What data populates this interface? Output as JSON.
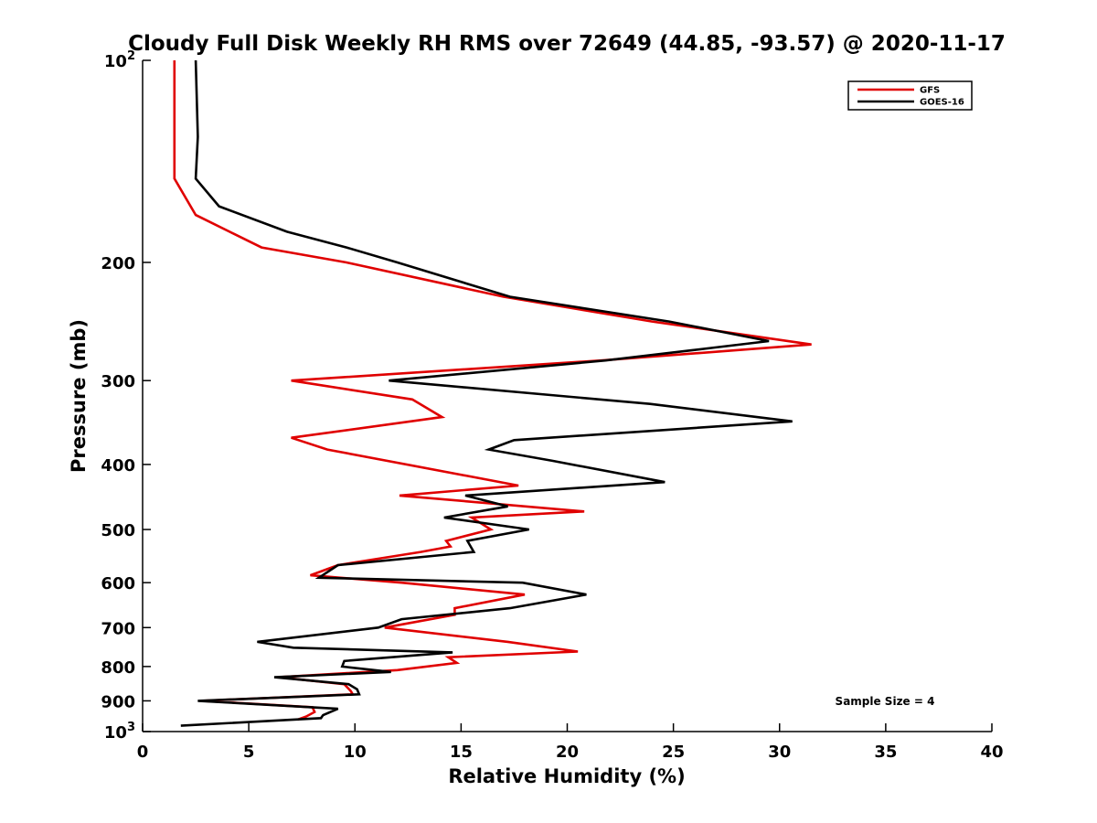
{
  "chart_data": {
    "type": "line",
    "title": "Cloudy Full Disk Weekly RH RMS over 72649 (44.85, -93.57) @ 2020-11-17",
    "xlabel": "Relative Humidity (%)",
    "ylabel": "Pressure (mb)",
    "xlim": [
      0,
      40
    ],
    "ylim": [
      100,
      1000
    ],
    "yscale": "log",
    "yreversed": true,
    "grid": false,
    "legend_position": "top-right",
    "x_ticks": [
      "0",
      "5",
      "10",
      "15",
      "20",
      "25",
      "30",
      "35",
      "40"
    ],
    "y_ticks": [
      {
        "value": 200,
        "label": "200"
      },
      {
        "value": 300,
        "label": "300"
      },
      {
        "value": 400,
        "label": "400"
      },
      {
        "value": 500,
        "label": "500"
      },
      {
        "value": 600,
        "label": "600"
      },
      {
        "value": 700,
        "label": "700"
      },
      {
        "value": 800,
        "label": "800"
      },
      {
        "value": 900,
        "label": "900"
      }
    ],
    "y_end_ticks": [
      {
        "value": 100,
        "base": "10",
        "exp": "2"
      },
      {
        "value": 1000,
        "base": "10",
        "exp": "3"
      }
    ],
    "annotation": "Sample Size = 4",
    "series": [
      {
        "name": "GFS",
        "color": "#e00000",
        "points": [
          [
            1.5,
            100
          ],
          [
            1.5,
            150
          ],
          [
            2.5,
            170
          ],
          [
            5.6,
            190
          ],
          [
            9.6,
            200
          ],
          [
            17.0,
            225
          ],
          [
            24.0,
            245
          ],
          [
            31.5,
            265
          ],
          [
            21.6,
            280
          ],
          [
            7.0,
            300
          ],
          [
            12.7,
            320
          ],
          [
            14.1,
            340
          ],
          [
            7.0,
            365
          ],
          [
            8.7,
            380
          ],
          [
            17.7,
            430
          ],
          [
            12.1,
            445
          ],
          [
            20.8,
            470
          ],
          [
            15.5,
            480
          ],
          [
            16.4,
            500
          ],
          [
            14.3,
            520
          ],
          [
            14.5,
            530
          ],
          [
            13.1,
            540
          ],
          [
            9.2,
            565
          ],
          [
            7.9,
            585
          ],
          [
            12.2,
            600
          ],
          [
            18.0,
            625
          ],
          [
            14.7,
            655
          ],
          [
            14.7,
            670
          ],
          [
            11.4,
            700
          ],
          [
            17.2,
            735
          ],
          [
            20.5,
            760
          ],
          [
            14.4,
            775
          ],
          [
            14.8,
            790
          ],
          [
            12.0,
            810
          ],
          [
            6.4,
            830
          ],
          [
            9.5,
            850
          ],
          [
            9.8,
            870
          ],
          [
            9.9,
            880
          ],
          [
            2.8,
            900
          ],
          [
            8.0,
            920
          ],
          [
            8.1,
            935
          ],
          [
            7.7,
            950
          ],
          [
            7.3,
            960
          ]
        ]
      },
      {
        "name": "GOES-16",
        "color": "#000000",
        "points": [
          [
            2.5,
            100
          ],
          [
            2.6,
            130
          ],
          [
            2.5,
            150
          ],
          [
            3.6,
            165
          ],
          [
            6.8,
            180
          ],
          [
            9.6,
            190
          ],
          [
            12.0,
            200
          ],
          [
            17.3,
            225
          ],
          [
            24.8,
            245
          ],
          [
            29.5,
            262
          ],
          [
            21.8,
            280
          ],
          [
            11.6,
            300
          ],
          [
            23.9,
            325
          ],
          [
            30.6,
            345
          ],
          [
            17.5,
            368
          ],
          [
            16.3,
            380
          ],
          [
            19.3,
            395
          ],
          [
            24.6,
            425
          ],
          [
            15.2,
            445
          ],
          [
            17.2,
            462
          ],
          [
            14.2,
            480
          ],
          [
            18.2,
            500
          ],
          [
            15.3,
            520
          ],
          [
            15.6,
            540
          ],
          [
            9.2,
            565
          ],
          [
            8.3,
            590
          ],
          [
            17.9,
            600
          ],
          [
            20.9,
            625
          ],
          [
            17.3,
            655
          ],
          [
            12.2,
            680
          ],
          [
            11.1,
            700
          ],
          [
            5.4,
            735
          ],
          [
            7.1,
            750
          ],
          [
            14.6,
            762
          ],
          [
            9.5,
            785
          ],
          [
            9.4,
            800
          ],
          [
            11.7,
            815
          ],
          [
            6.2,
            830
          ],
          [
            9.7,
            850
          ],
          [
            10.1,
            865
          ],
          [
            10.2,
            880
          ],
          [
            2.6,
            900
          ],
          [
            9.2,
            925
          ],
          [
            8.5,
            945
          ],
          [
            8.4,
            955
          ],
          [
            1.8,
            980
          ]
        ]
      }
    ]
  }
}
